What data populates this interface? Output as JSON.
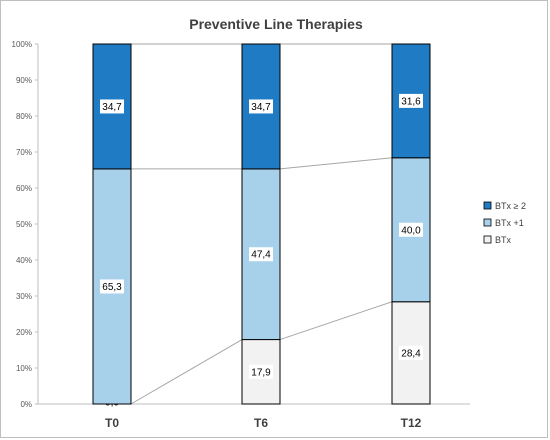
{
  "chart_data": {
    "type": "bar",
    "stacked": true,
    "title": "Preventive Line Therapies",
    "xlabel": "",
    "ylabel": "",
    "categories": [
      "T0",
      "T6",
      "T12"
    ],
    "ylim": [
      0,
      100
    ],
    "yticks": [
      "0%",
      "10%",
      "20%",
      "30%",
      "40%",
      "50%",
      "60%",
      "70%",
      "80%",
      "90%",
      "100%"
    ],
    "series": [
      {
        "name": "BTx",
        "values": [
          0.0,
          17.9,
          28.4
        ],
        "labels": [
          "0,0",
          "17,9",
          "28,4"
        ],
        "color": "#f2f2f2"
      },
      {
        "name": "BTx +1",
        "values": [
          65.3,
          47.4,
          40.0
        ],
        "labels": [
          "65,3",
          "47,4",
          "40,0"
        ],
        "color": "#a7d0ea"
      },
      {
        "name": "BTx ≥ 2",
        "values": [
          34.7,
          34.7,
          31.6
        ],
        "labels": [
          "34,7",
          "34,7",
          "31,6"
        ],
        "color": "#1f7bc4"
      }
    ],
    "legend_order": [
      "BTx ≥ 2",
      "BTx +1",
      "BTx"
    ],
    "legend_position": "right",
    "series_lines": true,
    "grid": false
  }
}
